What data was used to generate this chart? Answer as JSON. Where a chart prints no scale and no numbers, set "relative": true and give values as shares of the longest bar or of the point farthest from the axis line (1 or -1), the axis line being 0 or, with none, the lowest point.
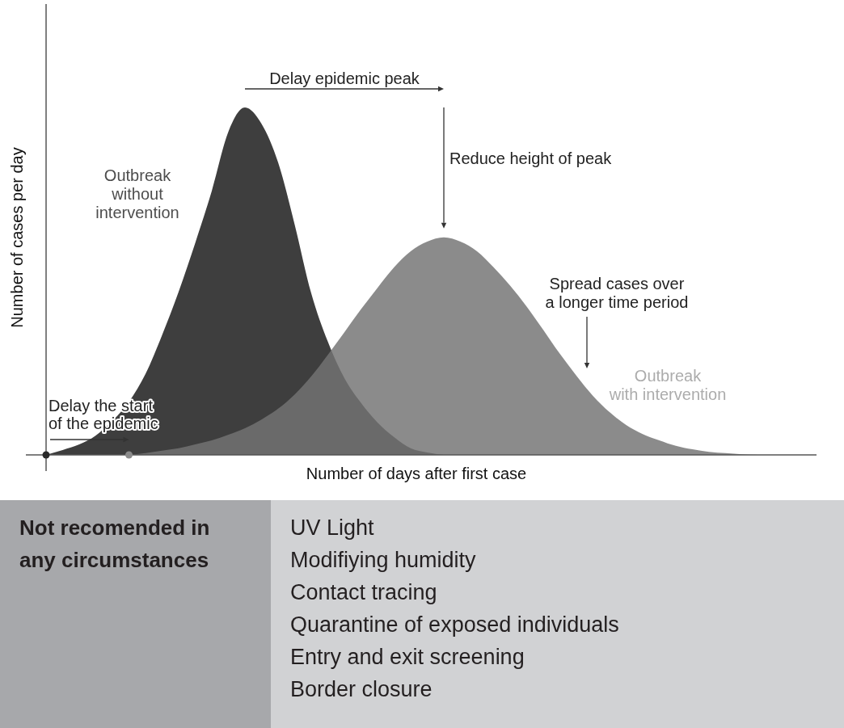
{
  "chart_data": [
    {
      "type": "area",
      "relative": true,
      "xlabel": "Number of days after first case",
      "ylabel": "Number of cases per day",
      "categories": [
        null,
        null,
        null,
        null,
        null,
        null,
        null,
        null,
        null,
        null,
        null,
        null,
        null,
        null,
        null,
        null,
        null,
        null,
        null,
        null,
        null,
        null,
        null,
        null,
        null,
        null,
        null,
        null,
        null,
        null,
        null,
        null,
        null,
        null,
        null,
        null,
        null,
        null,
        null,
        null,
        null,
        null,
        null,
        null
      ],
      "series": [
        {
          "name": "Outbreak\nwithout\nintervention",
          "color": "#3e3e3e",
          "values": [
            0,
            0.014,
            0.03,
            0.056,
            0.098,
            0.153,
            0.233,
            0.345,
            0.47,
            0.61,
            0.76,
            0.93,
            1,
            0.953,
            0.842,
            0.663,
            0.465,
            0.326,
            0.221,
            0.15,
            0.093,
            0.051,
            0.019,
            0.007,
            0,
            null,
            null,
            null,
            null,
            null,
            null,
            null,
            null,
            null,
            null,
            null,
            null,
            null,
            null,
            null,
            null,
            null,
            null,
            null
          ]
        },
        {
          "name": "Outbreak\nwith intervention",
          "color": "#8b8b8b",
          "values": [
            null,
            null,
            null,
            null,
            null,
            0,
            0.005,
            0.012,
            0.019,
            0.03,
            0.042,
            0.058,
            0.077,
            0.102,
            0.133,
            0.174,
            0.226,
            0.288,
            0.353,
            0.419,
            0.481,
            0.54,
            0.586,
            0.614,
            0.626,
            0.614,
            0.586,
            0.54,
            0.487,
            0.427,
            0.36,
            0.291,
            0.228,
            0.17,
            0.123,
            0.086,
            0.06,
            0.042,
            0.026,
            0.016,
            0.009,
            0.005,
            0.002,
            0
          ]
        }
      ],
      "annotations": [
        "Delay epidemic peak",
        "Reduce height of peak",
        "Spread cases over\na longer time period",
        "Delay the start\nof the epidemic"
      ]
    },
    {
      "type": "other",
      "title": "Not recomended in\nany circumstances",
      "annotations": [
        "UV Light",
        "Modifiying humidity",
        "Contact tracing",
        "Quarantine of exposed individuals",
        "Entry and exit screening",
        "Border closure"
      ]
    }
  ]
}
